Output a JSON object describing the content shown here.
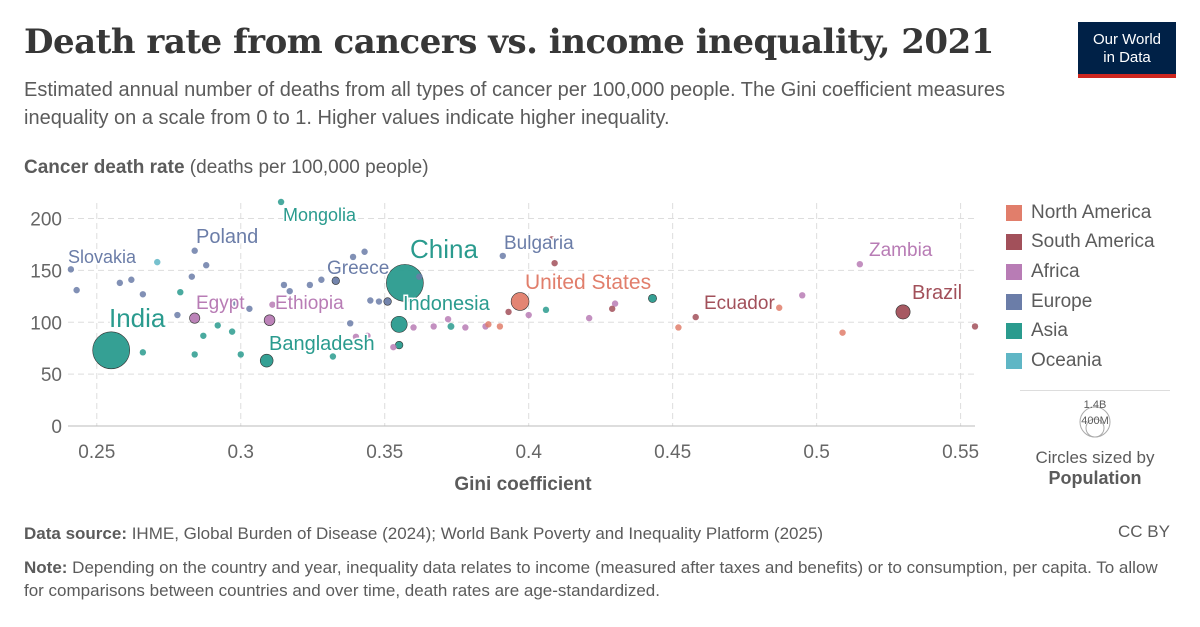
{
  "header": {
    "title": "Death rate from cancers vs. income inequality, 2021",
    "subtitle": "Estimated annual number of deaths from all types of cancer per 100,000 people. The Gini coefficient measures inequality on a scale from 0 to 1. Higher values indicate higher inequality.",
    "logo_line1": "Our World",
    "logo_line2": "in Data"
  },
  "axis": {
    "y_label_bold": "Cancer death rate",
    "y_label_rest": " (deaths per 100,000 people)",
    "x_label": "Gini coefficient"
  },
  "legend": {
    "items": [
      {
        "label": "North America",
        "color": "#e17e6b"
      },
      {
        "label": "South America",
        "color": "#a2505a"
      },
      {
        "label": "Africa",
        "color": "#b87cb5"
      },
      {
        "label": "Europe",
        "color": "#6b7da8"
      },
      {
        "label": "Asia",
        "color": "#2a9b8e"
      },
      {
        "label": "Oceania",
        "color": "#5fb6c5"
      }
    ],
    "size_max": "1.4B",
    "size_min": "400M",
    "size_note1": "Circles sized by",
    "size_note2": "Population"
  },
  "footer": {
    "source_label": "Data source:",
    "source_text": " IHME, Global Burden of Disease (2024); World Bank Poverty and Inequality Platform (2025)",
    "license": "CC BY",
    "note_label": "Note:",
    "note_text": " Depending on the country and year, inequality data relates to income (measured after taxes and benefits) or to consumption, per capita. To allow for comparisons between countries and over time, death rates are age-standardized."
  },
  "chart_data": {
    "type": "scatter",
    "title": "Death rate from cancers vs. income inequality, 2021",
    "xlabel": "Gini coefficient",
    "ylabel": "Cancer death rate (deaths per 100,000 people)",
    "xlim": [
      0.24,
      0.555
    ],
    "ylim": [
      0,
      215
    ],
    "xticks": [
      0.25,
      0.3,
      0.35,
      0.4,
      0.45,
      0.5,
      0.55
    ],
    "xtick_labels": [
      "0.25",
      "0.3",
      "0.35",
      "0.4",
      "0.45",
      "0.5",
      "0.55"
    ],
    "yticks": [
      0,
      50,
      100,
      150,
      200
    ],
    "grid": true,
    "legend_position": "right",
    "labels": [
      {
        "text": "Slovakia",
        "region": "Europe"
      },
      {
        "text": "Poland",
        "region": "Europe"
      },
      {
        "text": "Mongolia",
        "region": "Asia"
      },
      {
        "text": "Greece",
        "region": "Europe"
      },
      {
        "text": "China",
        "region": "Asia"
      },
      {
        "text": "Bulgaria",
        "region": "Europe"
      },
      {
        "text": "United States",
        "region": "North America"
      },
      {
        "text": "Zambia",
        "region": "Africa"
      },
      {
        "text": "Brazil",
        "region": "South America"
      },
      {
        "text": "India",
        "region": "Asia"
      },
      {
        "text": "Egypt",
        "region": "Africa"
      },
      {
        "text": "Ethiopia",
        "region": "Africa"
      },
      {
        "text": "Indonesia",
        "region": "Asia"
      },
      {
        "text": "Bangladesh",
        "region": "Asia"
      },
      {
        "text": "Ecuador",
        "region": "South America"
      }
    ],
    "points": [
      {
        "name": "India",
        "region": "Asia",
        "x": 0.255,
        "y": 73,
        "pop": 1.41
      },
      {
        "name": "China",
        "region": "Asia",
        "x": 0.357,
        "y": 138,
        "pop": 1.41
      },
      {
        "name": "United States",
        "region": "North America",
        "x": 0.397,
        "y": 120,
        "pop": 0.33
      },
      {
        "name": "Indonesia",
        "region": "Asia",
        "x": 0.355,
        "y": 98,
        "pop": 0.27
      },
      {
        "name": "Brazil",
        "region": "South America",
        "x": 0.53,
        "y": 110,
        "pop": 0.21
      },
      {
        "name": "Bangladesh",
        "region": "Asia",
        "x": 0.309,
        "y": 63,
        "pop": 0.17
      },
      {
        "name": "Ethiopia",
        "region": "Africa",
        "x": 0.31,
        "y": 102,
        "pop": 0.12
      },
      {
        "name": "Egypt",
        "region": "Africa",
        "x": 0.284,
        "y": 104,
        "pop": 0.11
      },
      {
        "name": "Mongolia",
        "region": "Asia",
        "x": 0.314,
        "y": 216,
        "pop": 0.003
      },
      {
        "name": "Zambia",
        "region": "Africa",
        "x": 0.515,
        "y": 156,
        "pop": 0.019
      },
      {
        "name": "Bulgaria",
        "region": "Europe",
        "x": 0.391,
        "y": 164,
        "pop": 0.007
      },
      {
        "name": "Greece",
        "region": "Europe",
        "x": 0.339,
        "y": 163,
        "pop": 0.01
      },
      {
        "name": "Slovakia",
        "region": "Europe",
        "x": 0.241,
        "y": 151,
        "pop": 0.005
      },
      {
        "name": "Poland",
        "region": "Europe",
        "x": 0.284,
        "y": 169,
        "pop": 0.038
      },
      {
        "name": "Ecuador",
        "region": "South America",
        "x": 0.458,
        "y": 105,
        "pop": 0.018
      },
      {
        "region": "Europe",
        "x": 0.243,
        "y": 131,
        "pop": 0.01
      },
      {
        "region": "Europe",
        "x": 0.258,
        "y": 138,
        "pop": 0.006
      },
      {
        "region": "Europe",
        "x": 0.262,
        "y": 141,
        "pop": 0.01
      },
      {
        "region": "Europe",
        "x": 0.266,
        "y": 127,
        "pop": 0.006
      },
      {
        "region": "Europe",
        "x": 0.283,
        "y": 144,
        "pop": 0.01
      },
      {
        "region": "Europe",
        "x": 0.288,
        "y": 155,
        "pop": 0.005
      },
      {
        "region": "Europe",
        "x": 0.315,
        "y": 136,
        "pop": 0.005
      },
      {
        "region": "Europe",
        "x": 0.317,
        "y": 130,
        "pop": 0.01
      },
      {
        "region": "Europe",
        "x": 0.324,
        "y": 136,
        "pop": 0.04
      },
      {
        "region": "Europe",
        "x": 0.328,
        "y": 141,
        "pop": 0.01
      },
      {
        "region": "Europe",
        "x": 0.333,
        "y": 140,
        "pop": 0.06
      },
      {
        "region": "Europe",
        "x": 0.343,
        "y": 168,
        "pop": 0.004
      },
      {
        "region": "Europe",
        "x": 0.345,
        "y": 121,
        "pop": 0.008
      },
      {
        "region": "Europe",
        "x": 0.348,
        "y": 120,
        "pop": 0.03
      },
      {
        "region": "Europe",
        "x": 0.351,
        "y": 120,
        "pop": 0.06
      },
      {
        "region": "Europe",
        "x": 0.362,
        "y": 144,
        "pop": 0.005
      },
      {
        "region": "Europe",
        "x": 0.298,
        "y": 119,
        "pop": 0.01
      },
      {
        "region": "Europe",
        "x": 0.303,
        "y": 113,
        "pop": 0.008
      },
      {
        "region": "Europe",
        "x": 0.278,
        "y": 107,
        "pop": 0.005
      },
      {
        "region": "Europe",
        "x": 0.338,
        "y": 99,
        "pop": 0.006
      },
      {
        "region": "Asia",
        "x": 0.266,
        "y": 71,
        "pop": 0.01
      },
      {
        "region": "Asia",
        "x": 0.279,
        "y": 129,
        "pop": 0.01
      },
      {
        "region": "Asia",
        "x": 0.284,
        "y": 69,
        "pop": 0.01
      },
      {
        "region": "Asia",
        "x": 0.287,
        "y": 87,
        "pop": 0.01
      },
      {
        "region": "Asia",
        "x": 0.292,
        "y": 97,
        "pop": 0.01
      },
      {
        "region": "Asia",
        "x": 0.297,
        "y": 91,
        "pop": 0.02
      },
      {
        "region": "Asia",
        "x": 0.3,
        "y": 69,
        "pop": 0.005
      },
      {
        "region": "Asia",
        "x": 0.332,
        "y": 67,
        "pop": 0.005
      },
      {
        "region": "Asia",
        "x": 0.355,
        "y": 78,
        "pop": 0.06
      },
      {
        "region": "Asia",
        "x": 0.373,
        "y": 96,
        "pop": 0.05
      },
      {
        "region": "Asia",
        "x": 0.406,
        "y": 112,
        "pop": 0.01
      },
      {
        "region": "Asia",
        "x": 0.443,
        "y": 123,
        "pop": 0.07
      },
      {
        "region": "Oceania",
        "x": 0.271,
        "y": 158,
        "pop": 0.006
      },
      {
        "region": "Africa",
        "x": 0.311,
        "y": 117,
        "pop": 0.01
      },
      {
        "region": "Africa",
        "x": 0.34,
        "y": 86,
        "pop": 0.03
      },
      {
        "region": "Africa",
        "x": 0.344,
        "y": 87,
        "pop": 0.01
      },
      {
        "region": "Africa",
        "x": 0.353,
        "y": 76,
        "pop": 0.01
      },
      {
        "region": "Africa",
        "x": 0.36,
        "y": 95,
        "pop": 0.01
      },
      {
        "region": "Africa",
        "x": 0.367,
        "y": 96,
        "pop": 0.01
      },
      {
        "region": "Africa",
        "x": 0.372,
        "y": 103,
        "pop": 0.01
      },
      {
        "region": "Africa",
        "x": 0.378,
        "y": 95,
        "pop": 0.01
      },
      {
        "region": "Africa",
        "x": 0.385,
        "y": 96,
        "pop": 0.02
      },
      {
        "region": "Africa",
        "x": 0.4,
        "y": 107,
        "pop": 0.01
      },
      {
        "region": "Africa",
        "x": 0.421,
        "y": 104,
        "pop": 0.01
      },
      {
        "region": "Africa",
        "x": 0.43,
        "y": 118,
        "pop": 0.01
      },
      {
        "region": "Africa",
        "x": 0.495,
        "y": 126,
        "pop": 0.01
      },
      {
        "region": "South America",
        "x": 0.408,
        "y": 180,
        "pop": 0.004
      },
      {
        "region": "South America",
        "x": 0.409,
        "y": 157,
        "pop": 0.004
      },
      {
        "region": "South America",
        "x": 0.393,
        "y": 110,
        "pop": 0.01
      },
      {
        "region": "South America",
        "x": 0.429,
        "y": 113,
        "pop": 0.005
      },
      {
        "region": "South America",
        "x": 0.555,
        "y": 96,
        "pop": 0.01
      },
      {
        "region": "North America",
        "x": 0.39,
        "y": 96,
        "pop": 0.006
      },
      {
        "region": "North America",
        "x": 0.452,
        "y": 95,
        "pop": 0.006
      },
      {
        "region": "North America",
        "x": 0.487,
        "y": 114,
        "pop": 0.006
      },
      {
        "region": "North America",
        "x": 0.509,
        "y": 90,
        "pop": 0.006
      },
      {
        "region": "North America",
        "x": 0.386,
        "y": 98,
        "pop": 0.006
      }
    ]
  }
}
